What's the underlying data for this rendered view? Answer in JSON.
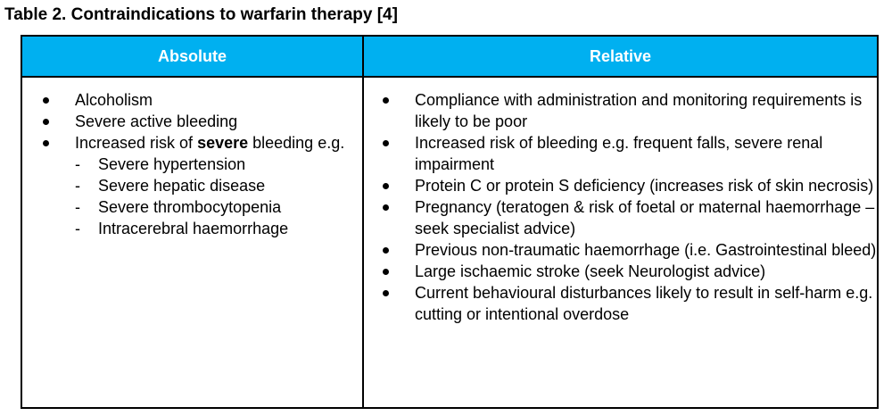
{
  "table_caption": "Table 2. Contraindications to warfarin therapy [4]",
  "header": {
    "absolute": "Absolute",
    "relative": "Relative"
  },
  "absolute": {
    "items": [
      "Alcoholism",
      "Severe active bleeding"
    ],
    "risk_item": {
      "before": "Increased risk of ",
      "bold": "severe",
      "after": " bleeding e.g."
    },
    "sub_items": [
      "Severe hypertension",
      "Severe hepatic disease",
      "Severe thrombocytopenia",
      "Intracerebral haemorrhage"
    ],
    "dash": "-"
  },
  "relative": {
    "items": [
      "Compliance with administration and monitoring requirements is likely to be poor",
      "Increased risk of bleeding e.g. frequent falls, severe renal impairment",
      "Protein C or protein S deficiency (increases risk of skin necrosis)",
      "Pregnancy (teratogen & risk of foetal or maternal haemorrhage – seek specialist advice)",
      "Previous non-traumatic haemorrhage (i.e. Gastrointestinal bleed)",
      "Large ischaemic stroke (seek Neurologist advice)",
      "Current behavioural disturbances likely to result in self-harm e.g. cutting or intentional overdose"
    ]
  },
  "colors": {
    "header_bg": "#00b0f0",
    "header_text": "#ffffff",
    "border": "#000000"
  }
}
